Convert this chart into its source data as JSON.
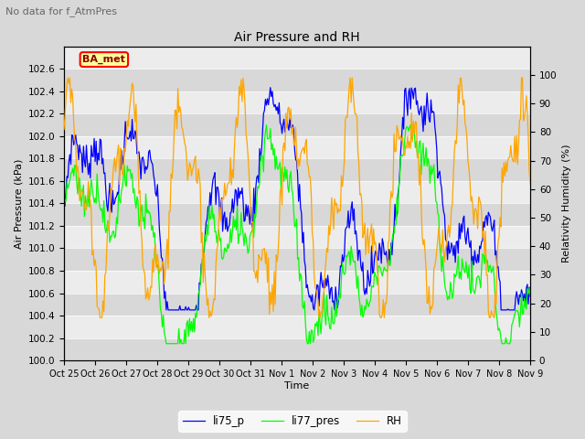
{
  "title": "Air Pressure and RH",
  "suptitle": "No data for f_AtmPres",
  "ylabel_left": "Air Pressure (kPa)",
  "ylabel_right": "Relativity Humidity (%)",
  "xlabel": "Time",
  "ylim_left": [
    100.0,
    102.8
  ],
  "ylim_right": [
    0,
    110
  ],
  "yticks_left": [
    100.0,
    100.2,
    100.4,
    100.6,
    100.8,
    101.0,
    101.2,
    101.4,
    101.6,
    101.8,
    102.0,
    102.2,
    102.4,
    102.6
  ],
  "yticks_right": [
    0,
    10,
    20,
    30,
    40,
    50,
    60,
    70,
    80,
    90,
    100
  ],
  "xtick_labels": [
    "Oct 25",
    "Oct 26",
    "Oct 27",
    "Oct 28",
    "Oct 29",
    "Oct 30",
    "Oct 31",
    "Nov 1",
    "Nov 2",
    "Nov 3",
    "Nov 4",
    "Nov 5",
    "Nov 6",
    "Nov 7",
    "Nov 8",
    "Nov 9"
  ],
  "legend_labels": [
    "li75_p",
    "li77_pres",
    "RH"
  ],
  "ba_met_label": "BA_met",
  "background_color": "#d8d8d8",
  "plot_bg_color": "#e8e8e8",
  "band_color_light": "#ececec",
  "band_color_dark": "#d8d8d8",
  "n_points": 480
}
